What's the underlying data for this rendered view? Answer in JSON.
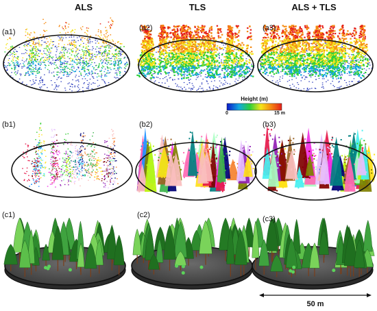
{
  "columns": {
    "als": "ALS",
    "tls": "TLS",
    "als_tls": "ALS + TLS"
  },
  "panels": {
    "a1": "(a1)",
    "a2": "(a2)",
    "a3": "(a3)",
    "b1": "(b1)",
    "b2": "(b2)",
    "b3": "(b3)",
    "c1": "(c1)",
    "c2": "(c2)",
    "c3": "(c3)"
  },
  "colorbar": {
    "title": "Height (m)",
    "min_label": "0",
    "max_label": "15 m",
    "stops": [
      "#0b18c8",
      "#12a8e0",
      "#2ecf3a",
      "#f5e51a",
      "#f58a12",
      "#e5201a"
    ]
  },
  "scalebar": {
    "label": "50 m"
  },
  "colors": {
    "ground_points": "#1c2fb8",
    "disc_ground": "#4a4a4a",
    "disc_edge": "#111111",
    "tree_green": "#2e8b2e",
    "trunk_brown": "#7a3e1a"
  }
}
